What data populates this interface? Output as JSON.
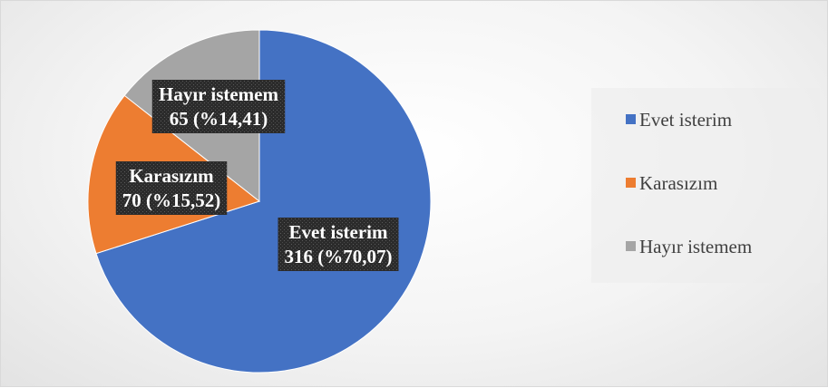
{
  "chart_data": {
    "type": "pie",
    "categories": [
      "Evet isterim",
      "Karasızım",
      "Hayır istemem"
    ],
    "values": [
      316,
      70,
      65
    ],
    "percent_labels": [
      "%70,07",
      "%15,52",
      "%14,41"
    ],
    "data_labels": [
      {
        "line1": "Evet isterim",
        "line2": "316 (%70,07)"
      },
      {
        "line1": "Karasızım",
        "line2": "70 (%15,52)"
      },
      {
        "line1": "Hayır istemem",
        "line2": "65 (%14,41)"
      }
    ],
    "colors": [
      "#4472c4",
      "#ed7d31",
      "#a5a5a5"
    ],
    "legend": {
      "position": "right",
      "entries": [
        "Evet isterim",
        "Karasızım",
        "Hayır istemem"
      ]
    },
    "start_angle": "12 o'clock",
    "direction": "clockwise"
  }
}
